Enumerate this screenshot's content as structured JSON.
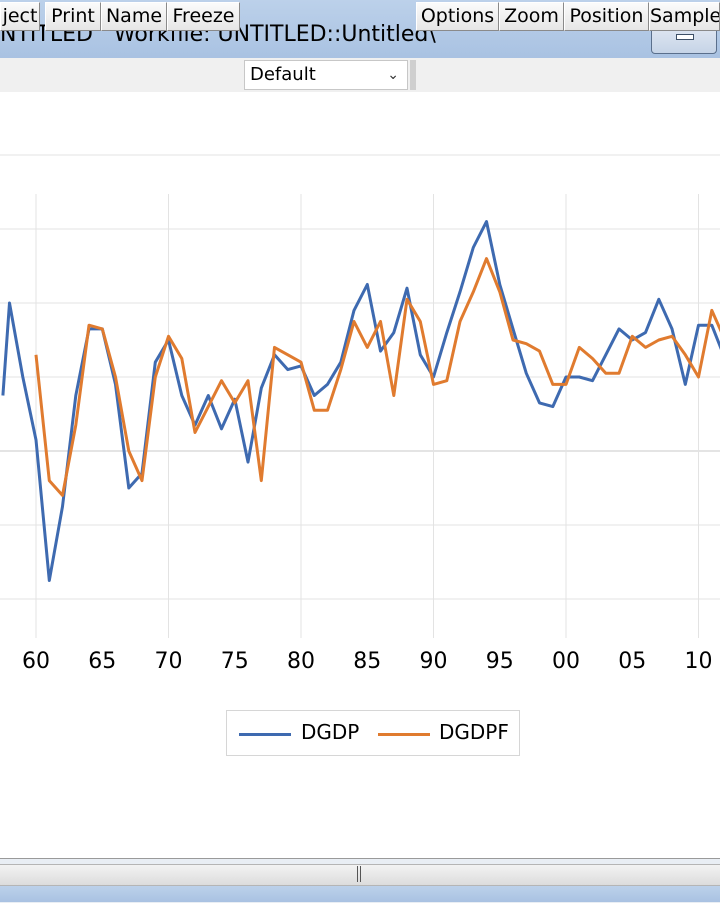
{
  "window": {
    "title": "NTITLED   Workfile: UNTITLED::Untitled\\"
  },
  "toolbar": {
    "buttons": [
      "ject",
      "Print",
      "Name",
      "Freeze",
      "Options",
      "Zoom",
      "Position",
      "Sample"
    ],
    "view_combo": {
      "value": "Default"
    }
  },
  "icons": {
    "minimize": "minimize-icon",
    "combo": "chevron-down-icon",
    "grip": "scroll-grip-icon"
  },
  "colors": {
    "dgdp": "#3e6ab0",
    "dgdpf": "#e07b2f",
    "grid": "#e3e3e3",
    "zero_line": "#c9c9c9"
  },
  "chart_data": {
    "type": "line",
    "title": "",
    "xlabel": "",
    "ylabel": "",
    "x_tick_labels": [
      "60",
      "65",
      "70",
      "75",
      "80",
      "85",
      "90",
      "95",
      "00",
      "05",
      "10"
    ],
    "x_tick_years": [
      1960,
      1965,
      1970,
      1975,
      1980,
      1985,
      1990,
      1995,
      2000,
      2005,
      2010
    ],
    "xlim": [
      1957.5,
      2012
    ],
    "ylim": [
      -0.07,
      0.09
    ],
    "gridlines_y": [
      0.08,
      0.06,
      0.04,
      0.02,
      -0.02,
      -0.04
    ],
    "zero_line": 0,
    "grid": true,
    "legend": "bottom",
    "series": [
      {
        "name": "DGDP",
        "x": [
          1957.5,
          1958,
          1959,
          1960,
          1961,
          1962,
          1963,
          1964,
          1965,
          1966,
          1967,
          1968,
          1969,
          1970,
          1971,
          1972,
          1973,
          1974,
          1975,
          1976,
          1977,
          1978,
          1979,
          1980,
          1981,
          1982,
          1983,
          1984,
          1985,
          1986,
          1987,
          1988,
          1989,
          1990,
          1991,
          1992,
          1993,
          1994,
          1995,
          1996,
          1997,
          1998,
          1999,
          2000,
          2001,
          2002,
          2003,
          2004,
          2005,
          2006,
          2007,
          2008,
          2009,
          2010,
          2011,
          2012
        ],
        "y": [
          0.015,
          0.04,
          0.02,
          0.003,
          -0.035,
          -0.015,
          0.015,
          0.033,
          0.033,
          0.018,
          -0.01,
          -0.006,
          0.024,
          0.03,
          0.015,
          0.007,
          0.015,
          0.006,
          0.014,
          -0.003,
          0.017,
          0.026,
          0.022,
          0.023,
          0.015,
          0.018,
          0.024,
          0.038,
          0.045,
          0.027,
          0.032,
          0.044,
          0.026,
          0.02,
          0.032,
          0.043,
          0.055,
          0.062,
          0.045,
          0.033,
          0.021,
          0.013,
          0.012,
          0.02,
          0.02,
          0.019,
          0.026,
          0.033,
          0.03,
          0.032,
          0.041,
          0.033,
          0.018,
          0.034,
          0.034,
          0.025
        ]
      },
      {
        "name": "DGDPF",
        "x": [
          1960,
          1961,
          1962,
          1963,
          1964,
          1965,
          1966,
          1967,
          1968,
          1969,
          1970,
          1971,
          1972,
          1973,
          1974,
          1975,
          1976,
          1977,
          1978,
          1979,
          1980,
          1981,
          1982,
          1983,
          1984,
          1985,
          1986,
          1987,
          1988,
          1989,
          1990,
          1991,
          1992,
          1993,
          1994,
          1995,
          1996,
          1997,
          1998,
          1999,
          2000,
          2001,
          2002,
          2003,
          2004,
          2005,
          2006,
          2007,
          2008,
          2009,
          2010,
          2011,
          2012
        ],
        "y": [
          0.026,
          -0.008,
          -0.012,
          0.007,
          0.034,
          0.033,
          0.02,
          0,
          -0.008,
          0.02,
          0.031,
          0.025,
          0.005,
          0.012,
          0.019,
          0.013,
          0.019,
          -0.008,
          0.028,
          0.026,
          0.024,
          0.011,
          0.011,
          0.022,
          0.035,
          0.028,
          0.035,
          0.015,
          0.041,
          0.035,
          0.018,
          0.019,
          0.035,
          0.043,
          0.052,
          0.043,
          0.03,
          0.029,
          0.027,
          0.018,
          0.018,
          0.028,
          0.025,
          0.021,
          0.021,
          0.031,
          0.028,
          0.03,
          0.031,
          0.026,
          0.02,
          0.038,
          0.03
        ]
      }
    ]
  }
}
